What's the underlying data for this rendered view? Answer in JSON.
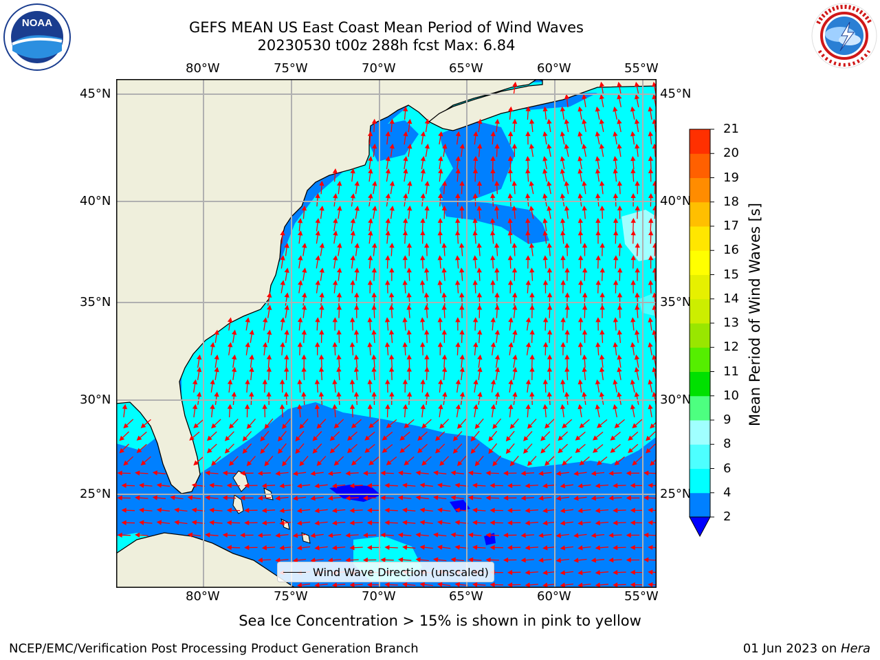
{
  "header": {
    "title_line1": "GEFS MEAN US East Coast Mean Period of Wind Waves",
    "title_line2": "20230530 t00z 288h fcst   Max: 6.84"
  },
  "logos": {
    "left": {
      "icon": "noaa-logo",
      "text": "NOAA",
      "ring_text": "NATIONAL OCEANIC AND ATMOSPHERIC ADMINISTRATION · U.S. DEPARTMENT OF COMMERCE"
    },
    "right": {
      "icon": "nws-logo",
      "ring_text": "NATIONAL WEATHER SERVICE"
    }
  },
  "map": {
    "lon_labels": [
      "80°W",
      "75°W",
      "70°W",
      "65°W",
      "60°W",
      "55°W"
    ],
    "lat_labels": [
      "45°N",
      "40°N",
      "35°N",
      "30°N",
      "25°N"
    ],
    "lon_range": [
      -85,
      -54
    ],
    "lat_range": [
      20.5,
      46
    ],
    "land_color": "#efefdc",
    "grid_color": "#b0b0b0",
    "arrow_color": "#ff0000",
    "legend_label": "Wind Wave Direction (unscaled)"
  },
  "colorbar": {
    "label": "Mean Period of Wind Waves [s]",
    "tick_labels": [
      "2",
      "4",
      "6",
      "8",
      "9",
      "10",
      "11",
      "12",
      "13",
      "14",
      "15",
      "16",
      "17",
      "18",
      "19",
      "20",
      "21"
    ],
    "colors": [
      "#0080ff",
      "#00ffff",
      "#4dffff",
      "#a0ffff",
      "#4dff80",
      "#00e000",
      "#55ee00",
      "#99e600",
      "#ccee00",
      "#e6f000",
      "#ffff00",
      "#ffe600",
      "#ffbf00",
      "#ff8c00",
      "#ff6000",
      "#ff3000",
      "#ff0000"
    ],
    "under_color": "#0000ff"
  },
  "footer": {
    "subtitle": "Sea Ice Concentration > 15% is shown in pink to yellow",
    "credit": "NCEP/EMC/Verification Post Processing Product Generation Branch",
    "date": "01 Jun 2023 on ",
    "machine": "Hera"
  }
}
